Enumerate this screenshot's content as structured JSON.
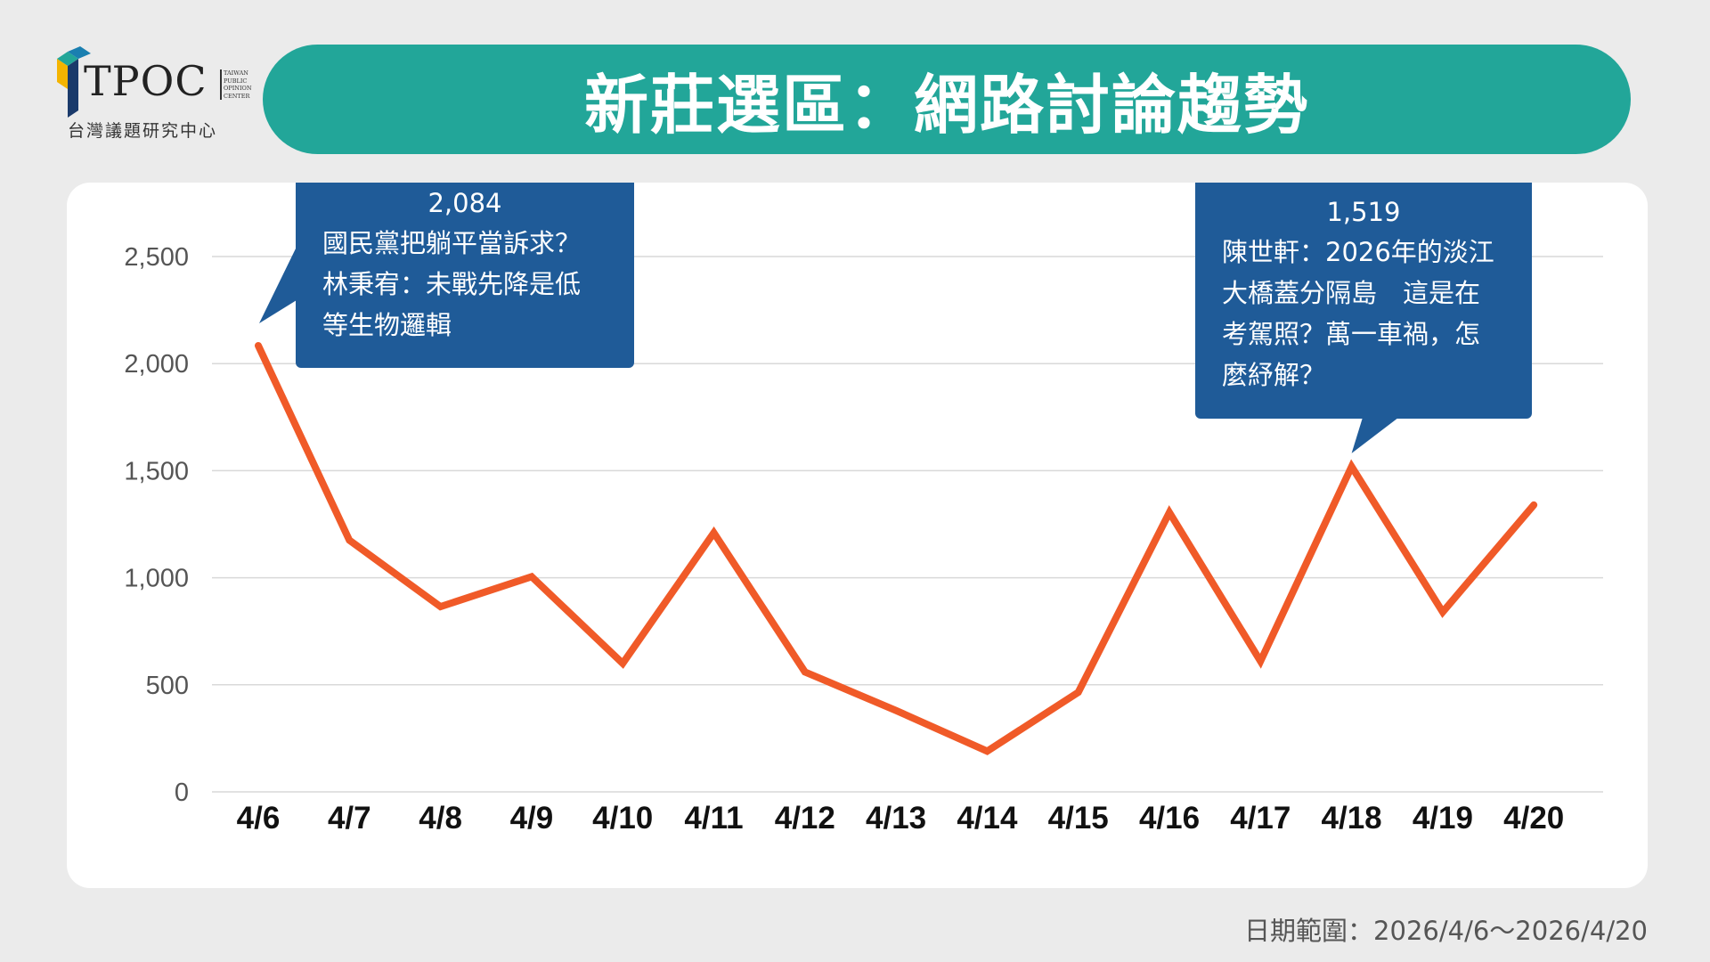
{
  "brand": {
    "name": "TPOC",
    "subtitle": "台灣議題研究中心",
    "tiny_lines": [
      "Taiwan",
      "Public",
      "Opinion",
      "Center"
    ]
  },
  "title": "新莊選區：網路討論趨勢",
  "footer": "日期範圍：2026/4/6～2026/4/20",
  "colors": {
    "background": "#ebebeb",
    "title_banner": "#22a699",
    "line": "#f05a28",
    "callout": "#1f5b98",
    "grid": "#d9d9d9"
  },
  "chart_data": {
    "type": "line",
    "categories": [
      "4/6",
      "4/7",
      "4/8",
      "4/9",
      "4/10",
      "4/11",
      "4/12",
      "4/13",
      "4/14",
      "4/15",
      "4/16",
      "4/17",
      "4/18",
      "4/19",
      "4/20"
    ],
    "series": [
      {
        "values": [
          2084,
          1175,
          865,
          1005,
          600,
          1210,
          560,
          380,
          190,
          465,
          1305,
          610,
          1519,
          840,
          1340
        ]
      }
    ],
    "ylim": [
      0,
      2500
    ],
    "yticks": [
      0,
      500,
      1000,
      1500,
      2000,
      2500
    ],
    "ytick_labels": [
      "0",
      "500",
      "1,000",
      "1,500",
      "2,000",
      "2,500"
    ],
    "grid": true,
    "xlabel": "",
    "ylabel": "",
    "annotations": [
      {
        "index": 0,
        "value_label": "2,084",
        "lines": [
          "國民黨把躺平當訴求？",
          "林秉宥：未戰先降是低",
          "等生物邏輯"
        ]
      },
      {
        "index": 12,
        "value_label": "1,519",
        "lines": [
          "陳世軒：2026年的淡江",
          "大橋蓋分隔島　這是在",
          "考駕照？萬一車禍，怎",
          "麼紓解？"
        ]
      }
    ]
  }
}
